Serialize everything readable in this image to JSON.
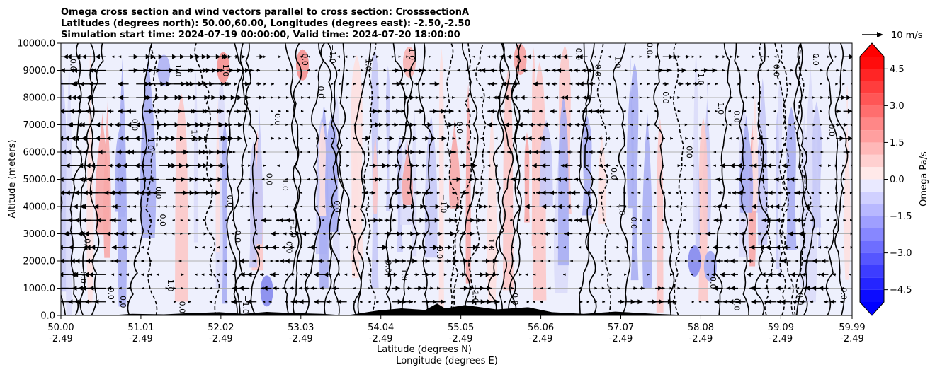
{
  "chart_data": {
    "type": "contour",
    "title_lines": [
      "Omega cross section and wind vectors parallel to cross section: CrosssectionA",
      "Latitudes (degrees north): 50.00,60.00, Longitudes (degrees east): -2.50,-2.50",
      "Simulation start time: 2024-07-19 00:00:00, Valid time: 2024-07-20 18:00:00"
    ],
    "xlabel_lat": "Latitude (degrees N)",
    "xlabel_lon": "Longitude (degrees E)",
    "ylabel": "Altitude (meters)",
    "x_range": [
      50.0,
      59.99
    ],
    "ylim": [
      0,
      10000
    ],
    "x_ticks": [
      {
        "lat": "50.00",
        "lon": "-2.49",
        "v": 50.0
      },
      {
        "lat": "51.01",
        "lon": "-2.49",
        "v": 51.01
      },
      {
        "lat": "52.02",
        "lon": "-2.49",
        "v": 52.02
      },
      {
        "lat": "53.03",
        "lon": "-2.49",
        "v": 53.03
      },
      {
        "lat": "54.04",
        "lon": "-2.49",
        "v": 54.04
      },
      {
        "lat": "55.05",
        "lon": "-2.49",
        "v": 55.05
      },
      {
        "lat": "56.06",
        "lon": "-2.49",
        "v": 56.06
      },
      {
        "lat": "57.07",
        "lon": "-2.49",
        "v": 57.07
      },
      {
        "lat": "58.08",
        "lon": "-2.49",
        "v": 58.08
      },
      {
        "lat": "59.09",
        "lon": "-2.49",
        "v": 59.09
      },
      {
        "lat": "59.99",
        "lon": "-2.49",
        "v": 59.99
      }
    ],
    "y_ticks": [
      {
        "label": "0.0",
        "v": 0
      },
      {
        "label": "1000.0",
        "v": 1000
      },
      {
        "label": "2000.0",
        "v": 2000
      },
      {
        "label": "3000.0",
        "v": 3000
      },
      {
        "label": "4000.0",
        "v": 4000
      },
      {
        "label": "5000.0",
        "v": 5000
      },
      {
        "label": "6000.0",
        "v": 6000
      },
      {
        "label": "7000.0",
        "v": 7000
      },
      {
        "label": "8000.0",
        "v": 8000
      },
      {
        "label": "9000.0",
        "v": 9000
      },
      {
        "label": "10000.0",
        "v": 10000
      }
    ],
    "colorbar": {
      "label": "Omega Pa/s",
      "range": [
        -5.0,
        5.0
      ],
      "ticks": [
        {
          "label": "4.5",
          "v": 4.5
        },
        {
          "label": "3.0",
          "v": 3.0
        },
        {
          "label": "1.5",
          "v": 1.5
        },
        {
          "label": "0.0",
          "v": 0.0
        },
        {
          "label": "−1.5",
          "v": -1.5
        },
        {
          "label": "−3.0",
          "v": -3.0
        },
        {
          "label": "−4.5",
          "v": -4.5
        }
      ]
    },
    "quiver_key": "10 m/s",
    "contour_levels": [
      -1.0,
      0.0,
      1.0
    ],
    "contour_labels": [
      {
        "text": "0.0",
        "x": 50.12,
        "y": 9200
      },
      {
        "text": "0.0",
        "x": 50.3,
        "y": 2600
      },
      {
        "text": "0.0",
        "x": 50.25,
        "y": 1400
      },
      {
        "text": "0.0",
        "x": 50.6,
        "y": 800
      },
      {
        "text": "0.0",
        "x": 50.75,
        "y": 500
      },
      {
        "text": "0.0",
        "x": 50.9,
        "y": 7000
      },
      {
        "text": "1.0",
        "x": 51.1,
        "y": 6300
      },
      {
        "text": "0.0",
        "x": 51.2,
        "y": 4500
      },
      {
        "text": "0.0",
        "x": 51.25,
        "y": 3500
      },
      {
        "text": "1.0",
        "x": 51.35,
        "y": 1100
      },
      {
        "text": "0.0",
        "x": 51.5,
        "y": 300
      },
      {
        "text": "1.0",
        "x": 51.65,
        "y": 6600
      },
      {
        "text": "1.0",
        "x": 51.45,
        "y": 9000
      },
      {
        "text": "1.0",
        "x": 52.05,
        "y": 9000
      },
      {
        "text": "0.0",
        "x": 52.1,
        "y": 4200
      },
      {
        "text": "0.0",
        "x": 52.2,
        "y": 2900
      },
      {
        "text": "−1.0",
        "x": 52.3,
        "y": 400
      },
      {
        "text": "0.0",
        "x": 52.6,
        "y": 5000
      },
      {
        "text": "1.0",
        "x": 52.8,
        "y": 4800
      },
      {
        "text": "0.0",
        "x": 52.7,
        "y": 7200
      },
      {
        "text": "−1.0",
        "x": 52.9,
        "y": 3200
      },
      {
        "text": "0.0",
        "x": 52.85,
        "y": 2500
      },
      {
        "text": "0.0",
        "x": 53.05,
        "y": 9400
      },
      {
        "text": "−1.0",
        "x": 53.4,
        "y": 9600
      },
      {
        "text": "0.0",
        "x": 53.25,
        "y": 8200
      },
      {
        "text": "0.0",
        "x": 53.45,
        "y": 4000
      },
      {
        "text": "1.0",
        "x": 53.85,
        "y": 9200
      },
      {
        "text": "0.0",
        "x": 54.1,
        "y": 1800
      },
      {
        "text": "1.0",
        "x": 54.3,
        "y": 1500
      },
      {
        "text": "1.0",
        "x": 54.4,
        "y": 9600
      },
      {
        "text": "−1.0",
        "x": 54.8,
        "y": 4100
      },
      {
        "text": "0.0",
        "x": 54.75,
        "y": 2300
      },
      {
        "text": "0.0",
        "x": 55.0,
        "y": 6900
      },
      {
        "text": "−1.0",
        "x": 55.2,
        "y": 800
      },
      {
        "text": "1.0",
        "x": 55.4,
        "y": 2600
      },
      {
        "text": "0.0",
        "x": 55.7,
        "y": 600
      },
      {
        "text": "0.0",
        "x": 56.5,
        "y": 9600
      },
      {
        "text": "0.0",
        "x": 56.75,
        "y": 9000
      },
      {
        "text": "1.0",
        "x": 57.0,
        "y": 9300
      },
      {
        "text": "0.0",
        "x": 57.4,
        "y": 9800
      },
      {
        "text": "0.0",
        "x": 56.95,
        "y": 5200
      },
      {
        "text": "1.0",
        "x": 57.05,
        "y": 3900
      },
      {
        "text": "0.0",
        "x": 57.2,
        "y": 3400
      },
      {
        "text": "0.0",
        "x": 57.6,
        "y": 8000
      },
      {
        "text": "0.0",
        "x": 57.9,
        "y": 6000
      },
      {
        "text": "1.0",
        "x": 58.3,
        "y": 7600
      },
      {
        "text": "0.0",
        "x": 58.5,
        "y": 7300
      },
      {
        "text": "−1.0",
        "x": 58.05,
        "y": 8800
      },
      {
        "text": "0.0",
        "x": 58.2,
        "y": 1200
      },
      {
        "text": "0.0",
        "x": 58.5,
        "y": 400
      },
      {
        "text": "0.0",
        "x": 59.0,
        "y": 9000
      },
      {
        "text": "0.0",
        "x": 59.5,
        "y": 9400
      },
      {
        "text": "0.0",
        "x": 59.7,
        "y": 6800
      },
      {
        "text": "0.0",
        "x": 59.3,
        "y": 600
      },
      {
        "text": "0.0",
        "x": 59.85,
        "y": 800
      }
    ],
    "terrain": [
      [
        50.0,
        0
      ],
      [
        50.6,
        0
      ],
      [
        50.9,
        60
      ],
      [
        51.3,
        40
      ],
      [
        51.6,
        80
      ],
      [
        52.0,
        120
      ],
      [
        52.3,
        60
      ],
      [
        52.6,
        130
      ],
      [
        52.9,
        90
      ],
      [
        53.3,
        60
      ],
      [
        53.6,
        0
      ],
      [
        54.0,
        180
      ],
      [
        54.3,
        260
      ],
      [
        54.6,
        200
      ],
      [
        54.75,
        440
      ],
      [
        54.85,
        260
      ],
      [
        55.1,
        380
      ],
      [
        55.3,
        300
      ],
      [
        55.5,
        220
      ],
      [
        55.9,
        300
      ],
      [
        56.2,
        120
      ],
      [
        56.6,
        60
      ],
      [
        57.0,
        140
      ],
      [
        57.5,
        60
      ],
      [
        58.0,
        0
      ],
      [
        59.99,
        0
      ]
    ]
  }
}
